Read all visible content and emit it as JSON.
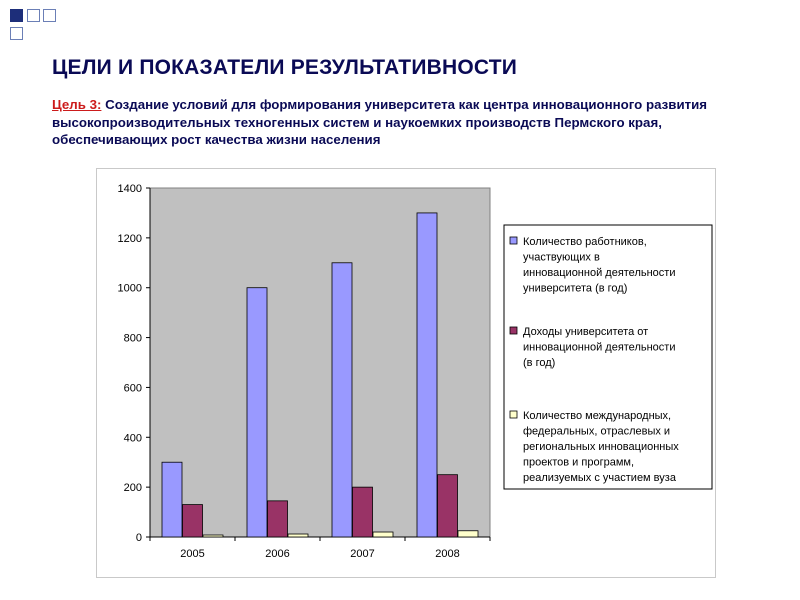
{
  "header": {
    "title": "ЦЕЛИ И ПОКАЗАТЕЛИ РЕЗУЛЬТАТИВНОСТИ",
    "goal_prefix": "Цель 3:",
    "goal_text": " Создание условий для формирования университета как центра инновационного развития высокопроизводительных техногенных систем и наукоемких производств Пермского края, обеспечивающих рост качества жизни населения"
  },
  "chart_data": {
    "type": "bar",
    "categories": [
      "2005",
      "2006",
      "2007",
      "2008"
    ],
    "ylim": [
      0,
      1400
    ],
    "yticks": [
      "0",
      "200",
      "400",
      "600",
      "800",
      "1000",
      "1200",
      "1400"
    ],
    "grid": false,
    "legend_position": "right",
    "series": [
      {
        "name": "Количество работников, участвующих в инновационной деятельности университета (в год)",
        "legend_lines": [
          "Количество работников,",
          "участвующих в",
          "инновационной деятельности",
          "университета (в год)"
        ],
        "values": [
          300,
          1000,
          1100,
          1300
        ],
        "color": "#9999ff"
      },
      {
        "name": "Доходы университета от инновационной деятельности (в год)",
        "legend_lines": [
          "Доходы университета от",
          "инновационной деятельности",
          "(в год)"
        ],
        "values": [
          130,
          145,
          200,
          250
        ],
        "color": "#993366"
      },
      {
        "name": "Количество международных, федеральных, отраслевых и региональных инновационных проектов и программ, реализуемых с участием вуза",
        "legend_lines": [
          "Количество международных,",
          "федеральных, отраслевых и",
          "региональных инновационных",
          "проектов и программ,",
          "реализуемых с участием вуза"
        ],
        "values": [
          8,
          12,
          20,
          25
        ],
        "color": "#ffffcc"
      }
    ]
  },
  "colors": {
    "title": "#0a0a55",
    "prefix": "#cc1b1b",
    "plot_bg": "#c0c0c0",
    "square": "#1d2e7a"
  }
}
